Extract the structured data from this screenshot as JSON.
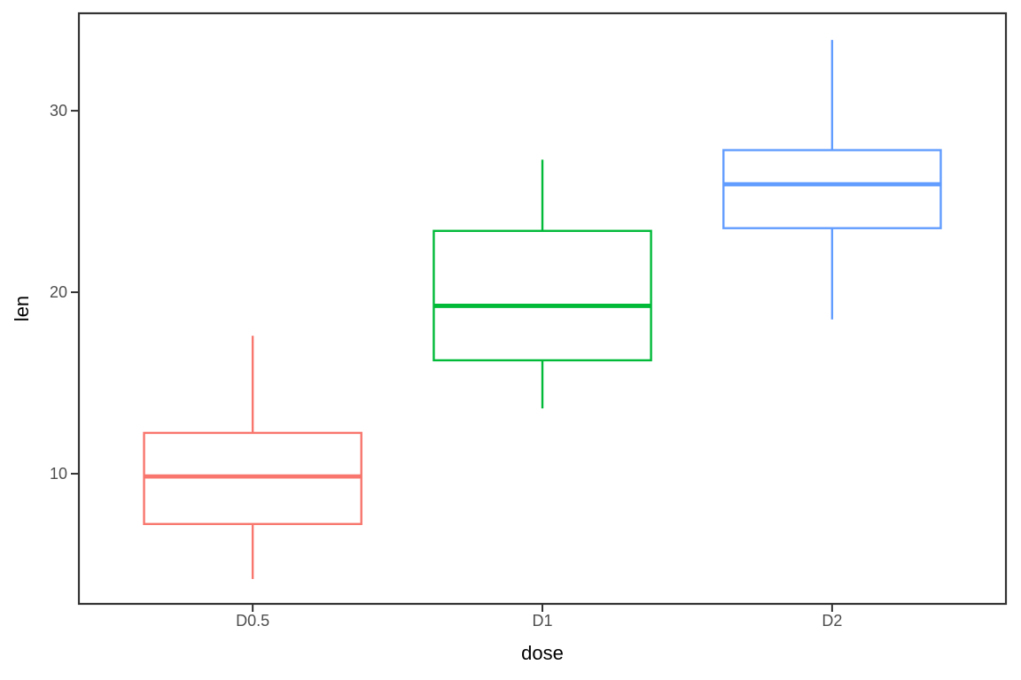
{
  "chart_data": {
    "type": "boxplot",
    "title": "",
    "xlabel": "dose",
    "ylabel": "len",
    "categories": [
      "D0.5",
      "D1",
      "D2"
    ],
    "series": [
      {
        "name": "D0.5",
        "color": "#F8766D",
        "whisker_low": 4.2,
        "q1": 7.23,
        "median": 9.85,
        "q3": 12.25,
        "whisker_high": 17.6
      },
      {
        "name": "D1",
        "color": "#00BA38",
        "whisker_low": 13.6,
        "q1": 16.25,
        "median": 19.25,
        "q3": 23.38,
        "whisker_high": 27.3
      },
      {
        "name": "D2",
        "color": "#619CFF",
        "whisker_low": 18.5,
        "q1": 23.53,
        "median": 25.95,
        "q3": 27.83,
        "whisker_high": 33.9
      }
    ],
    "y_ticks": [
      10,
      20,
      30
    ],
    "y_domain": [
      2.83,
      35.37
    ],
    "x_tick_labels": [
      "D0.5",
      "D1",
      "D2"
    ],
    "grid": false,
    "legend": false,
    "panel_border": true,
    "outliers_shown": false
  },
  "style": {
    "background": "#FFFFFF",
    "panel_fill": "#FFFFFF",
    "panel_border_color": "#333333",
    "tick_color": "#333333",
    "tick_label_color": "#4D4D4D",
    "axis_title_color": "#000000"
  }
}
